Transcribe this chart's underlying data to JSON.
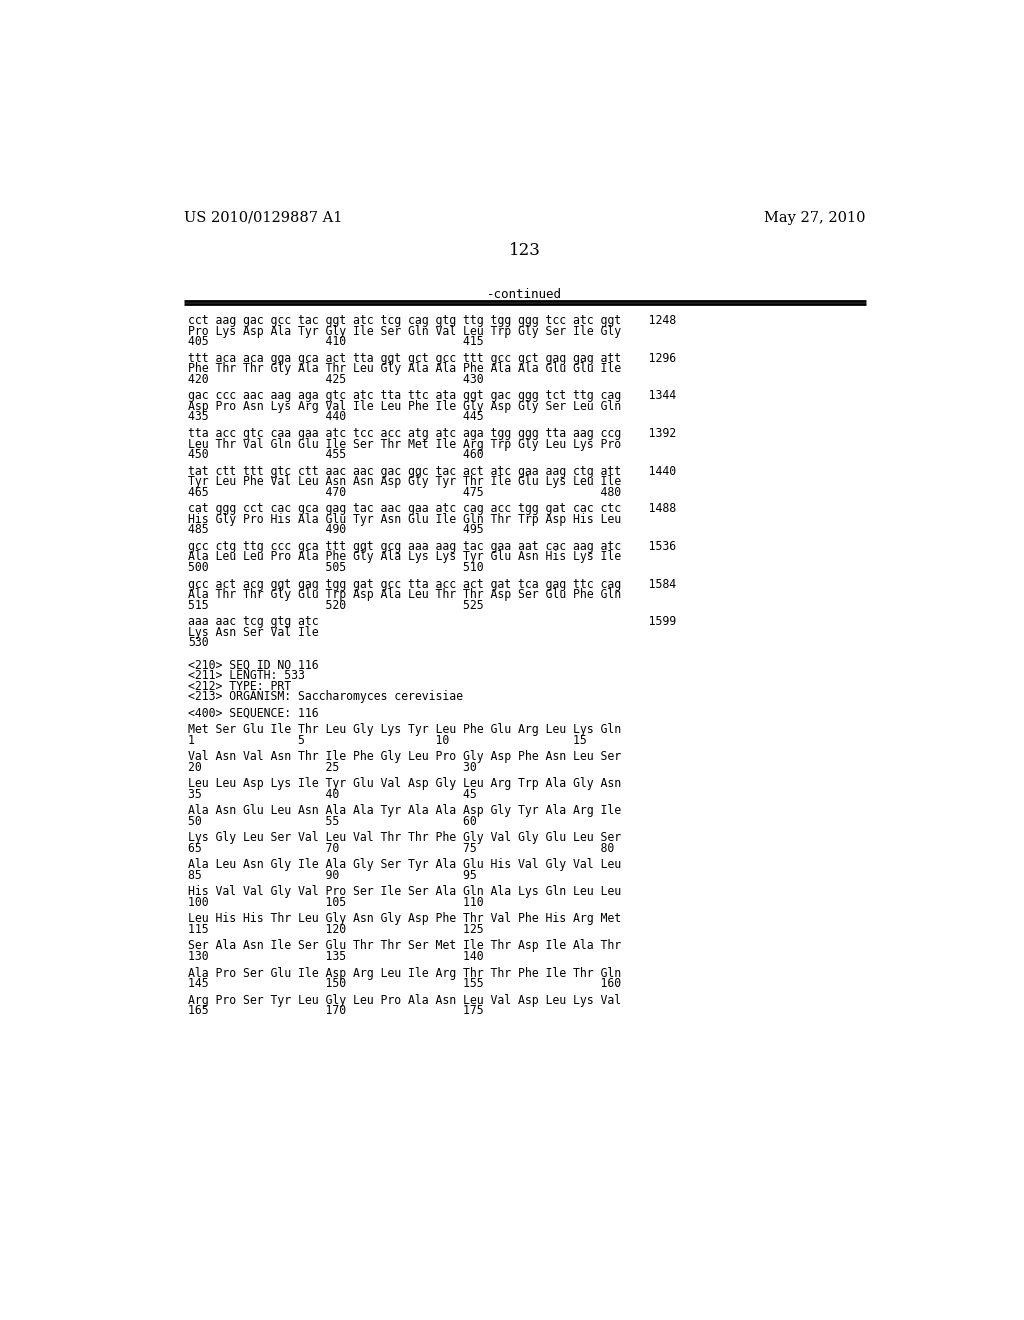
{
  "header_left": "US 2010/0129887 A1",
  "header_right": "May 27, 2010",
  "page_number": "123",
  "continued_label": "-continued",
  "background_color": "#ffffff",
  "text_color": "#000000",
  "lines": [
    {
      "text": "cct aag gac gcc tac ggt atc tcg cag gtg ttg tgg ggg tcc atc ggt    1248",
      "type": "seq"
    },
    {
      "text": "Pro Lys Asp Ala Tyr Gly Ile Ser Gln Val Leu Trp Gly Ser Ile Gly",
      "type": "aa"
    },
    {
      "text": "405                 410                 415",
      "type": "num"
    },
    {
      "text": "",
      "type": "blank"
    },
    {
      "text": "ttt aca aca gga gca act tta ggt gct gcc ttt gcc gct gag gag att    1296",
      "type": "seq"
    },
    {
      "text": "Phe Thr Thr Gly Ala Thr Leu Gly Ala Ala Phe Ala Ala Glu Glu Ile",
      "type": "aa"
    },
    {
      "text": "420                 425                 430",
      "type": "num"
    },
    {
      "text": "",
      "type": "blank"
    },
    {
      "text": "gac ccc aac aag aga gtc atc tta ttc ata ggt gac ggg tct ttg cag    1344",
      "type": "seq"
    },
    {
      "text": "Asp Pro Asn Lys Arg Val Ile Leu Phe Ile Gly Asp Gly Ser Leu Gln",
      "type": "aa"
    },
    {
      "text": "435                 440                 445",
      "type": "num"
    },
    {
      "text": "",
      "type": "blank"
    },
    {
      "text": "tta acc gtc caa gaa atc tcc acc atg atc aga tgg ggg tta aag ccg    1392",
      "type": "seq"
    },
    {
      "text": "Leu Thr Val Gln Glu Ile Ser Thr Met Ile Arg Trp Gly Leu Lys Pro",
      "type": "aa"
    },
    {
      "text": "450                 455                 460",
      "type": "num"
    },
    {
      "text": "",
      "type": "blank"
    },
    {
      "text": "tat ctt ttt gtc ctt aac aac gac ggc tac act atc gaa aag ctg att    1440",
      "type": "seq"
    },
    {
      "text": "Tyr Leu Phe Val Leu Asn Asn Asp Gly Tyr Thr Ile Glu Lys Leu Ile",
      "type": "aa"
    },
    {
      "text": "465                 470                 475                 480",
      "type": "num"
    },
    {
      "text": "",
      "type": "blank"
    },
    {
      "text": "cat ggg cct cac gca gag tac aac gaa atc cag acc tgg gat cac ctc    1488",
      "type": "seq"
    },
    {
      "text": "His Gly Pro His Ala Glu Tyr Asn Glu Ile Gln Thr Trp Asp His Leu",
      "type": "aa"
    },
    {
      "text": "485                 490                 495",
      "type": "num"
    },
    {
      "text": "",
      "type": "blank"
    },
    {
      "text": "gcc ctg ttg ccc gca ttt ggt gcg aaa aag tac gaa aat cac aag atc    1536",
      "type": "seq"
    },
    {
      "text": "Ala Leu Leu Pro Ala Phe Gly Ala Lys Lys Tyr Glu Asn His Lys Ile",
      "type": "aa"
    },
    {
      "text": "500                 505                 510",
      "type": "num"
    },
    {
      "text": "",
      "type": "blank"
    },
    {
      "text": "gcc act acg ggt gag tgg gat gcc tta acc act gat tca gag ttc cag    1584",
      "type": "seq"
    },
    {
      "text": "Ala Thr Thr Gly Glu Trp Asp Ala Leu Thr Thr Asp Ser Glu Phe Gln",
      "type": "aa"
    },
    {
      "text": "515                 520                 525",
      "type": "num"
    },
    {
      "text": "",
      "type": "blank"
    },
    {
      "text": "aaa aac tcg gtg atc                                                1599",
      "type": "seq"
    },
    {
      "text": "Lys Asn Ser Val Ile",
      "type": "aa"
    },
    {
      "text": "530",
      "type": "num"
    },
    {
      "text": "",
      "type": "blank"
    },
    {
      "text": "",
      "type": "blank"
    },
    {
      "text": "<210> SEQ ID NO 116",
      "type": "meta"
    },
    {
      "text": "<211> LENGTH: 533",
      "type": "meta"
    },
    {
      "text": "<212> TYPE: PRT",
      "type": "meta"
    },
    {
      "text": "<213> ORGANISM: Saccharomyces cerevisiae",
      "type": "meta"
    },
    {
      "text": "",
      "type": "blank"
    },
    {
      "text": "<400> SEQUENCE: 116",
      "type": "meta"
    },
    {
      "text": "",
      "type": "blank"
    },
    {
      "text": "Met Ser Glu Ile Thr Leu Gly Lys Tyr Leu Phe Glu Arg Leu Lys Gln",
      "type": "aa"
    },
    {
      "text": "1               5                   10                  15",
      "type": "num"
    },
    {
      "text": "",
      "type": "blank"
    },
    {
      "text": "Val Asn Val Asn Thr Ile Phe Gly Leu Pro Gly Asp Phe Asn Leu Ser",
      "type": "aa"
    },
    {
      "text": "20                  25                  30",
      "type": "num"
    },
    {
      "text": "",
      "type": "blank"
    },
    {
      "text": "Leu Leu Asp Lys Ile Tyr Glu Val Asp Gly Leu Arg Trp Ala Gly Asn",
      "type": "aa"
    },
    {
      "text": "35                  40                  45",
      "type": "num"
    },
    {
      "text": "",
      "type": "blank"
    },
    {
      "text": "Ala Asn Glu Leu Asn Ala Ala Tyr Ala Ala Asp Gly Tyr Ala Arg Ile",
      "type": "aa"
    },
    {
      "text": "50                  55                  60",
      "type": "num"
    },
    {
      "text": "",
      "type": "blank"
    },
    {
      "text": "Lys Gly Leu Ser Val Leu Val Thr Thr Phe Gly Val Gly Glu Leu Ser",
      "type": "aa"
    },
    {
      "text": "65                  70                  75                  80",
      "type": "num"
    },
    {
      "text": "",
      "type": "blank"
    },
    {
      "text": "Ala Leu Asn Gly Ile Ala Gly Ser Tyr Ala Glu His Val Gly Val Leu",
      "type": "aa"
    },
    {
      "text": "85                  90                  95",
      "type": "num"
    },
    {
      "text": "",
      "type": "blank"
    },
    {
      "text": "His Val Val Gly Val Pro Ser Ile Ser Ala Gln Ala Lys Gln Leu Leu",
      "type": "aa"
    },
    {
      "text": "100                 105                 110",
      "type": "num"
    },
    {
      "text": "",
      "type": "blank"
    },
    {
      "text": "Leu His His Thr Leu Gly Asn Gly Asp Phe Thr Val Phe His Arg Met",
      "type": "aa"
    },
    {
      "text": "115                 120                 125",
      "type": "num"
    },
    {
      "text": "",
      "type": "blank"
    },
    {
      "text": "Ser Ala Asn Ile Ser Glu Thr Thr Ser Met Ile Thr Asp Ile Ala Thr",
      "type": "aa"
    },
    {
      "text": "130                 135                 140",
      "type": "num"
    },
    {
      "text": "",
      "type": "blank"
    },
    {
      "text": "Ala Pro Ser Glu Ile Asp Arg Leu Ile Arg Thr Thr Phe Ile Thr Gln",
      "type": "aa"
    },
    {
      "text": "145                 150                 155                 160",
      "type": "num"
    },
    {
      "text": "",
      "type": "blank"
    },
    {
      "text": "Arg Pro Ser Tyr Leu Gly Leu Pro Ala Asn Leu Val Asp Leu Lys Val",
      "type": "aa"
    },
    {
      "text": "165                 170                 175",
      "type": "num"
    }
  ]
}
